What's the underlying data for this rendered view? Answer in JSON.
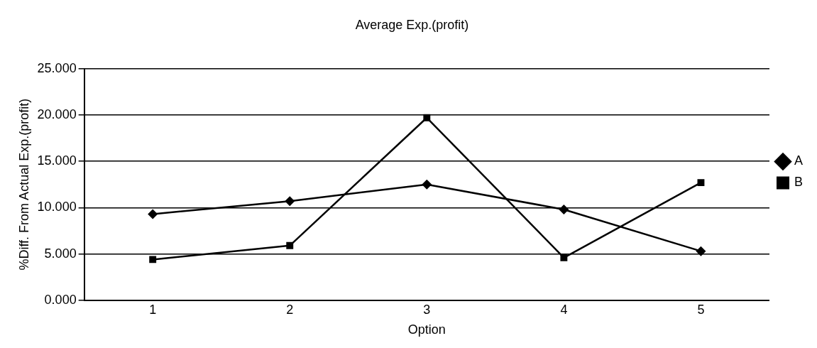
{
  "chart_data": {
    "type": "line",
    "title": "Average Exp.(profit)",
    "xlabel": "Option",
    "ylabel": "%Diff. From Actual Exp.(profit)",
    "categories": [
      "1",
      "2",
      "3",
      "4",
      "5"
    ],
    "series": [
      {
        "name": "A",
        "color": "#000000",
        "marker": "diamond",
        "values": [
          9.3,
          10.7,
          12.5,
          9.8,
          5.3
        ]
      },
      {
        "name": "B",
        "color": "#000000",
        "marker": "square",
        "values": [
          4.4,
          5.9,
          19.7,
          4.6,
          12.7
        ]
      }
    ],
    "ylim": [
      0,
      25
    ],
    "yticks": [
      {
        "value": 0,
        "label": "0.000"
      },
      {
        "value": 5,
        "label": "5.000"
      },
      {
        "value": 10,
        "label": "10.000"
      },
      {
        "value": 15,
        "label": "15.000"
      },
      {
        "value": 20,
        "label": "20.000"
      },
      {
        "value": 25,
        "label": "25.000"
      }
    ],
    "grid": "y",
    "legend": "right",
    "line_style": "solid"
  }
}
